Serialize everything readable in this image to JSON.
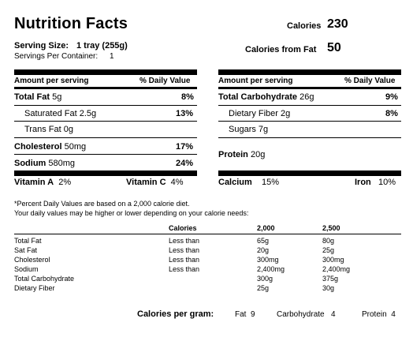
{
  "header": {
    "title": "Nutrition Facts",
    "calories_label": "Calories",
    "calories_value": "230",
    "calories_fat_label": "Calories from Fat",
    "calories_fat_value": "50",
    "serving_size_label": "Serving Size:",
    "serving_size_value": "1 tray (255g)",
    "servings_label": "Servings Per Container:",
    "servings_value": "1"
  },
  "left": {
    "amount_header": "Amount per serving",
    "dv_header": "% Daily Value",
    "rows": [
      {
        "name": "Total Fat",
        "amount": "5g",
        "dv": "8%"
      },
      {
        "name": "Saturated Fat",
        "amount": "2.5g",
        "dv": "13%"
      },
      {
        "name": "Trans Fat",
        "amount": "0g",
        "dv": ""
      },
      {
        "name": "Cholesterol",
        "amount": "50mg",
        "dv": "17%"
      },
      {
        "name": "Sodium",
        "amount": "580mg",
        "dv": "24%"
      }
    ],
    "vitamin_a_label": "Vitamin A",
    "vitamin_a_value": "2%",
    "vitamin_c_label": "Vitamin C",
    "vitamin_c_value": "4%"
  },
  "right": {
    "amount_header": "Amount per serving",
    "dv_header": "% Daily Value",
    "rows": [
      {
        "name": "Total Carbohydrate",
        "amount": "26g",
        "dv": "9%"
      },
      {
        "name": "Dietary Fiber",
        "amount": "2g",
        "dv": "8%"
      },
      {
        "name": "Sugars",
        "amount": "7g",
        "dv": ""
      },
      {
        "name": "Protein",
        "amount": "20g",
        "dv": ""
      }
    ],
    "calcium_label": "Calcium",
    "calcium_value": "15%",
    "iron_label": "Iron",
    "iron_value": "10%"
  },
  "footnote": {
    "line1": "*Percent Daily Values are based on a 2,000 calorie diet.",
    "line2": "Your daily values may be higher or lower depending on your calorie needs:"
  },
  "daily_table": {
    "headers": [
      "",
      "Calories",
      "2,000",
      "2,500"
    ],
    "rows": [
      [
        "Total Fat",
        "Less than",
        "65g",
        "80g"
      ],
      [
        "Sat Fat",
        "Less than",
        "20g",
        "25g"
      ],
      [
        "Cholesterol",
        "Less than",
        "300mg",
        "300mg"
      ],
      [
        "Sodium",
        "Less than",
        "2,400mg",
        "2,400mg"
      ],
      [
        "Total Carbohydrate",
        "",
        "300g",
        "375g"
      ],
      [
        "Dietary Fiber",
        "",
        "25g",
        "30g"
      ]
    ]
  },
  "per_gram": {
    "label": "Calories per gram:",
    "fat_label": "Fat",
    "fat_value": "9",
    "carb_label": "Carbohydrate",
    "carb_value": "4",
    "protein_label": "Protein",
    "protein_value": "4"
  }
}
